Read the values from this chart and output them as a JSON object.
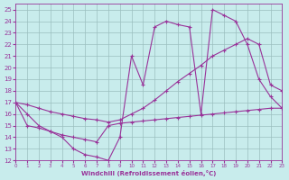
{
  "bg_color": "#c8ecec",
  "grid_color": "#9bbfbf",
  "line_color": "#993399",
  "xlim": [
    0,
    23
  ],
  "ylim": [
    12,
    25.5
  ],
  "yticks": [
    12,
    13,
    14,
    15,
    16,
    17,
    18,
    19,
    20,
    21,
    22,
    23,
    24,
    25
  ],
  "xticks": [
    0,
    1,
    2,
    3,
    4,
    5,
    6,
    7,
    8,
    9,
    10,
    11,
    12,
    13,
    14,
    15,
    16,
    17,
    18,
    19,
    20,
    21,
    22,
    23
  ],
  "xlabel": "Windchill (Refroidissement éolien,°C)",
  "curve1_x": [
    0,
    1,
    2,
    3,
    4,
    5,
    6,
    7,
    8,
    9,
    10,
    11,
    12,
    13,
    14,
    15,
    16,
    17,
    18,
    19,
    20,
    21,
    22,
    23
  ],
  "curve1_y": [
    17.0,
    16.0,
    15.0,
    14.5,
    14.0,
    13.0,
    12.5,
    12.3,
    12.0,
    14.0,
    21.0,
    18.5,
    23.5,
    24.0,
    23.7,
    23.5,
    16.0,
    25.0,
    24.5,
    24.0,
    22.0,
    19.0,
    17.5,
    16.5
  ],
  "curve2_x": [
    0,
    1,
    2,
    3,
    4,
    5,
    6,
    7,
    8,
    9,
    10,
    11,
    12,
    13,
    14,
    15,
    16,
    17,
    18,
    19,
    20,
    21,
    22,
    23
  ],
  "curve2_y": [
    17.0,
    16.8,
    16.5,
    16.2,
    16.0,
    15.8,
    15.6,
    15.5,
    15.3,
    15.5,
    16.0,
    16.5,
    17.2,
    18.0,
    18.8,
    19.5,
    20.2,
    21.0,
    21.5,
    22.0,
    22.5,
    22.0,
    18.5,
    18.0
  ],
  "curve3_x": [
    0,
    1,
    2,
    3,
    4,
    5,
    6,
    7,
    8,
    9,
    10,
    11,
    12,
    13,
    14,
    15,
    16,
    17,
    18,
    19,
    20,
    21,
    22,
    23
  ],
  "curve3_y": [
    17.0,
    15.0,
    14.8,
    14.5,
    14.2,
    14.0,
    13.8,
    13.6,
    15.0,
    15.2,
    15.3,
    15.4,
    15.5,
    15.6,
    15.7,
    15.8,
    15.9,
    16.0,
    16.1,
    16.2,
    16.3,
    16.4,
    16.5,
    16.5
  ]
}
